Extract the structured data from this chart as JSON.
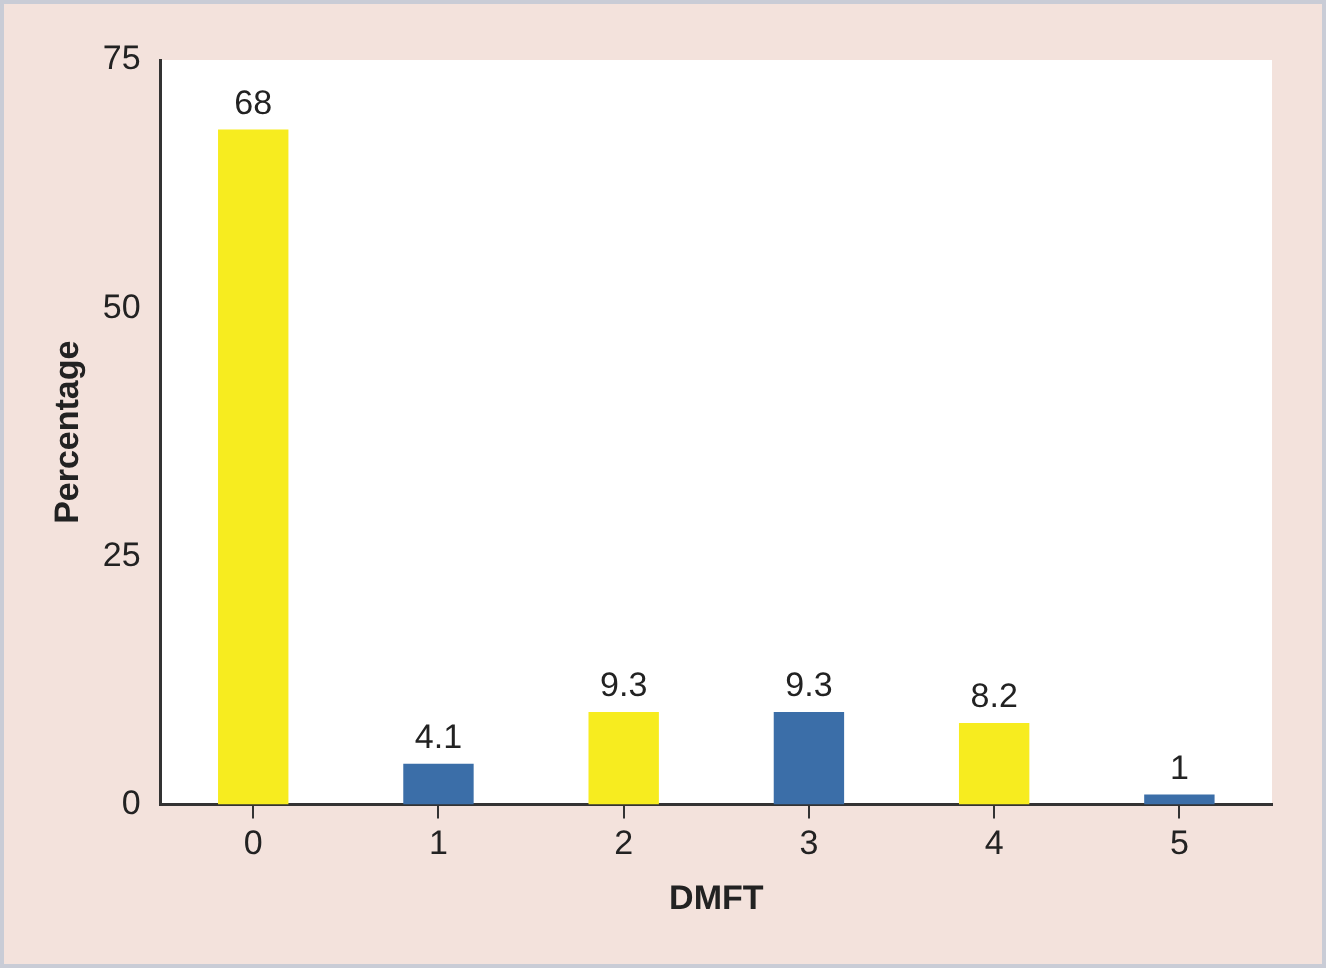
{
  "chart_data": {
    "type": "bar",
    "xlabel": "DMFT",
    "ylabel": "Percentage",
    "categories": [
      "0",
      "1",
      "2",
      "3",
      "4",
      "5"
    ],
    "values": [
      68,
      4.1,
      9.3,
      9.3,
      8.2,
      1
    ],
    "colors": [
      "#f7ec1f",
      "#3b6ea8",
      "#f7ec1f",
      "#3b6ea8",
      "#f7ec1f",
      "#3b6ea8"
    ],
    "ylim": [
      0,
      75
    ],
    "yticks": [
      0,
      25,
      50,
      75
    ],
    "grid": false,
    "legend": false,
    "data_labels": true
  }
}
